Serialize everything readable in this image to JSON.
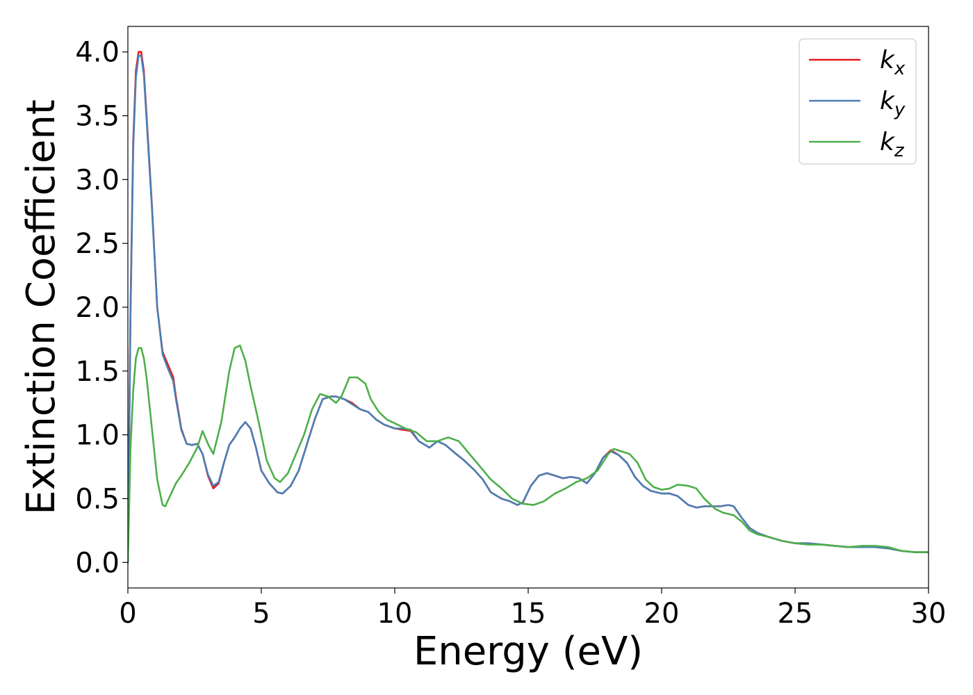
{
  "chart_data": {
    "type": "line",
    "title": "",
    "xlabel": "Energy (eV)",
    "ylabel": "Extinction Coefficient",
    "xlim": [
      0,
      30
    ],
    "ylim": [
      -0.2,
      4.2
    ],
    "xticks": [
      0,
      5,
      10,
      15,
      20,
      25,
      30
    ],
    "yticks": [
      0.0,
      0.5,
      1.0,
      1.5,
      2.0,
      2.5,
      3.0,
      3.5,
      4.0
    ],
    "xtick_labels": [
      "0",
      "5",
      "10",
      "15",
      "20",
      "25",
      "30"
    ],
    "ytick_labels": [
      "0.0",
      "0.5",
      "1.0",
      "1.5",
      "2.0",
      "2.5",
      "3.0",
      "3.5",
      "4.0"
    ],
    "grid": false,
    "legend_position": "top-right",
    "series": [
      {
        "name": "k",
        "subscript": "x",
        "color": "#e41a1c",
        "x": [
          0,
          0.1,
          0.2,
          0.3,
          0.4,
          0.5,
          0.6,
          0.7,
          0.9,
          1.1,
          1.3,
          1.5,
          1.7,
          1.8,
          2.0,
          2.2,
          2.4,
          2.6,
          2.8,
          3.0,
          3.2,
          3.4,
          3.6,
          3.8,
          4.0,
          4.2,
          4.4,
          4.6,
          4.8,
          5.0,
          5.3,
          5.6,
          5.8,
          6.1,
          6.4,
          6.7,
          7.0,
          7.3,
          7.6,
          7.8,
          8.1,
          8.4,
          8.7,
          9.0,
          9.3,
          9.6,
          10.0,
          10.3,
          10.6,
          10.9,
          11.3,
          11.6,
          11.9,
          12.3,
          12.6,
          13.0,
          13.3,
          13.6,
          14.0,
          14.3,
          14.6,
          14.8,
          15.1,
          15.4,
          15.7,
          16.0,
          16.3,
          16.6,
          16.9,
          17.2,
          17.5,
          17.8,
          18.1,
          18.4,
          18.7,
          19.0,
          19.3,
          19.6,
          20.0,
          20.3,
          20.6,
          21.0,
          21.3,
          21.6,
          21.9,
          22.2,
          22.5,
          22.7,
          23.0,
          23.3,
          23.6,
          24.0,
          24.5,
          25.0,
          25.5,
          26.0,
          26.5,
          27.0,
          27.5,
          28.0,
          28.5,
          29.0,
          29.5,
          30.0
        ],
        "y": [
          0.0,
          2.0,
          3.3,
          3.85,
          4.0,
          4.0,
          3.85,
          3.5,
          2.8,
          2.0,
          1.65,
          1.55,
          1.45,
          1.3,
          1.05,
          0.93,
          0.92,
          0.93,
          0.85,
          0.68,
          0.58,
          0.62,
          0.78,
          0.92,
          0.98,
          1.05,
          1.1,
          1.05,
          0.9,
          0.72,
          0.62,
          0.55,
          0.54,
          0.6,
          0.72,
          0.92,
          1.12,
          1.28,
          1.3,
          1.3,
          1.28,
          1.25,
          1.2,
          1.18,
          1.12,
          1.08,
          1.05,
          1.04,
          1.03,
          0.95,
          0.9,
          0.95,
          0.92,
          0.85,
          0.8,
          0.72,
          0.65,
          0.55,
          0.5,
          0.48,
          0.45,
          0.47,
          0.6,
          0.68,
          0.7,
          0.68,
          0.66,
          0.67,
          0.66,
          0.62,
          0.7,
          0.82,
          0.88,
          0.84,
          0.78,
          0.67,
          0.6,
          0.56,
          0.54,
          0.54,
          0.52,
          0.45,
          0.43,
          0.44,
          0.44,
          0.44,
          0.45,
          0.44,
          0.35,
          0.27,
          0.23,
          0.2,
          0.17,
          0.15,
          0.15,
          0.14,
          0.13,
          0.12,
          0.12,
          0.12,
          0.11,
          0.09,
          0.08,
          0.08
        ]
      },
      {
        "name": "k",
        "subscript": "y",
        "color": "#4a7fb5",
        "x": [
          0,
          0.1,
          0.2,
          0.3,
          0.4,
          0.5,
          0.6,
          0.7,
          0.9,
          1.1,
          1.3,
          1.5,
          1.7,
          1.8,
          2.0,
          2.2,
          2.4,
          2.6,
          2.8,
          3.0,
          3.2,
          3.4,
          3.6,
          3.8,
          4.0,
          4.2,
          4.4,
          4.6,
          4.8,
          5.0,
          5.3,
          5.6,
          5.8,
          6.1,
          6.4,
          6.7,
          7.0,
          7.3,
          7.6,
          7.8,
          8.1,
          8.4,
          8.7,
          9.0,
          9.3,
          9.6,
          10.0,
          10.3,
          10.6,
          10.9,
          11.3,
          11.6,
          11.9,
          12.3,
          12.6,
          13.0,
          13.3,
          13.6,
          14.0,
          14.3,
          14.6,
          14.8,
          15.1,
          15.4,
          15.7,
          16.0,
          16.3,
          16.6,
          16.9,
          17.2,
          17.5,
          17.8,
          18.1,
          18.4,
          18.7,
          19.0,
          19.3,
          19.6,
          20.0,
          20.3,
          20.6,
          21.0,
          21.3,
          21.6,
          21.9,
          22.2,
          22.5,
          22.7,
          23.0,
          23.3,
          23.6,
          24.0,
          24.5,
          25.0,
          25.5,
          26.0,
          26.5,
          27.0,
          27.5,
          28.0,
          28.5,
          29.0,
          29.5,
          30.0
        ],
        "y": [
          0.0,
          1.95,
          3.25,
          3.8,
          3.97,
          3.97,
          3.82,
          3.47,
          2.78,
          2.0,
          1.63,
          1.52,
          1.42,
          1.28,
          1.04,
          0.93,
          0.92,
          0.93,
          0.85,
          0.69,
          0.6,
          0.63,
          0.78,
          0.92,
          0.98,
          1.05,
          1.1,
          1.05,
          0.9,
          0.72,
          0.62,
          0.55,
          0.54,
          0.6,
          0.72,
          0.92,
          1.12,
          1.28,
          1.3,
          1.3,
          1.28,
          1.24,
          1.2,
          1.18,
          1.12,
          1.08,
          1.05,
          1.05,
          1.04,
          0.95,
          0.9,
          0.95,
          0.92,
          0.85,
          0.8,
          0.72,
          0.65,
          0.55,
          0.5,
          0.48,
          0.45,
          0.47,
          0.6,
          0.68,
          0.7,
          0.68,
          0.66,
          0.67,
          0.66,
          0.62,
          0.7,
          0.82,
          0.87,
          0.84,
          0.78,
          0.67,
          0.6,
          0.56,
          0.54,
          0.54,
          0.52,
          0.45,
          0.43,
          0.44,
          0.44,
          0.44,
          0.45,
          0.44,
          0.35,
          0.27,
          0.23,
          0.2,
          0.17,
          0.15,
          0.15,
          0.14,
          0.13,
          0.12,
          0.12,
          0.12,
          0.11,
          0.09,
          0.08,
          0.08
        ]
      },
      {
        "name": "k",
        "subscript": "z",
        "color": "#4daf4a",
        "x": [
          0,
          0.1,
          0.2,
          0.3,
          0.4,
          0.5,
          0.6,
          0.7,
          0.9,
          1.1,
          1.3,
          1.4,
          1.6,
          1.8,
          2.0,
          2.3,
          2.6,
          2.8,
          3.0,
          3.2,
          3.5,
          3.8,
          4.0,
          4.2,
          4.4,
          4.6,
          4.9,
          5.2,
          5.5,
          5.7,
          6.0,
          6.3,
          6.6,
          6.9,
          7.2,
          7.5,
          7.8,
          8.0,
          8.3,
          8.6,
          8.9,
          9.1,
          9.4,
          9.7,
          10.0,
          10.4,
          10.8,
          11.2,
          11.6,
          12.0,
          12.4,
          12.8,
          13.2,
          13.6,
          14.0,
          14.4,
          14.8,
          15.2,
          15.6,
          16.0,
          16.4,
          16.8,
          17.2,
          17.6,
          18.0,
          18.2,
          18.5,
          18.8,
          19.1,
          19.4,
          19.7,
          20.0,
          20.3,
          20.6,
          21.0,
          21.3,
          21.6,
          22.0,
          22.3,
          22.7,
          23.0,
          23.3,
          23.6,
          24.0,
          24.5,
          25.0,
          25.5,
          26.0,
          26.5,
          27.0,
          27.5,
          28.0,
          28.5,
          29.0,
          29.5,
          30.0
        ],
        "y": [
          0.0,
          0.9,
          1.35,
          1.6,
          1.68,
          1.68,
          1.6,
          1.45,
          1.05,
          0.65,
          0.45,
          0.44,
          0.53,
          0.62,
          0.68,
          0.78,
          0.9,
          1.03,
          0.93,
          0.85,
          1.1,
          1.5,
          1.68,
          1.7,
          1.58,
          1.38,
          1.1,
          0.8,
          0.66,
          0.63,
          0.7,
          0.85,
          1.0,
          1.2,
          1.32,
          1.3,
          1.25,
          1.3,
          1.45,
          1.45,
          1.4,
          1.28,
          1.18,
          1.12,
          1.09,
          1.05,
          1.02,
          0.95,
          0.95,
          0.98,
          0.95,
          0.85,
          0.75,
          0.65,
          0.58,
          0.5,
          0.46,
          0.45,
          0.48,
          0.54,
          0.58,
          0.63,
          0.66,
          0.72,
          0.85,
          0.89,
          0.87,
          0.85,
          0.78,
          0.65,
          0.59,
          0.57,
          0.58,
          0.61,
          0.6,
          0.58,
          0.5,
          0.42,
          0.39,
          0.37,
          0.32,
          0.25,
          0.22,
          0.2,
          0.17,
          0.15,
          0.14,
          0.14,
          0.13,
          0.12,
          0.13,
          0.13,
          0.12,
          0.09,
          0.08,
          0.08
        ]
      }
    ]
  }
}
